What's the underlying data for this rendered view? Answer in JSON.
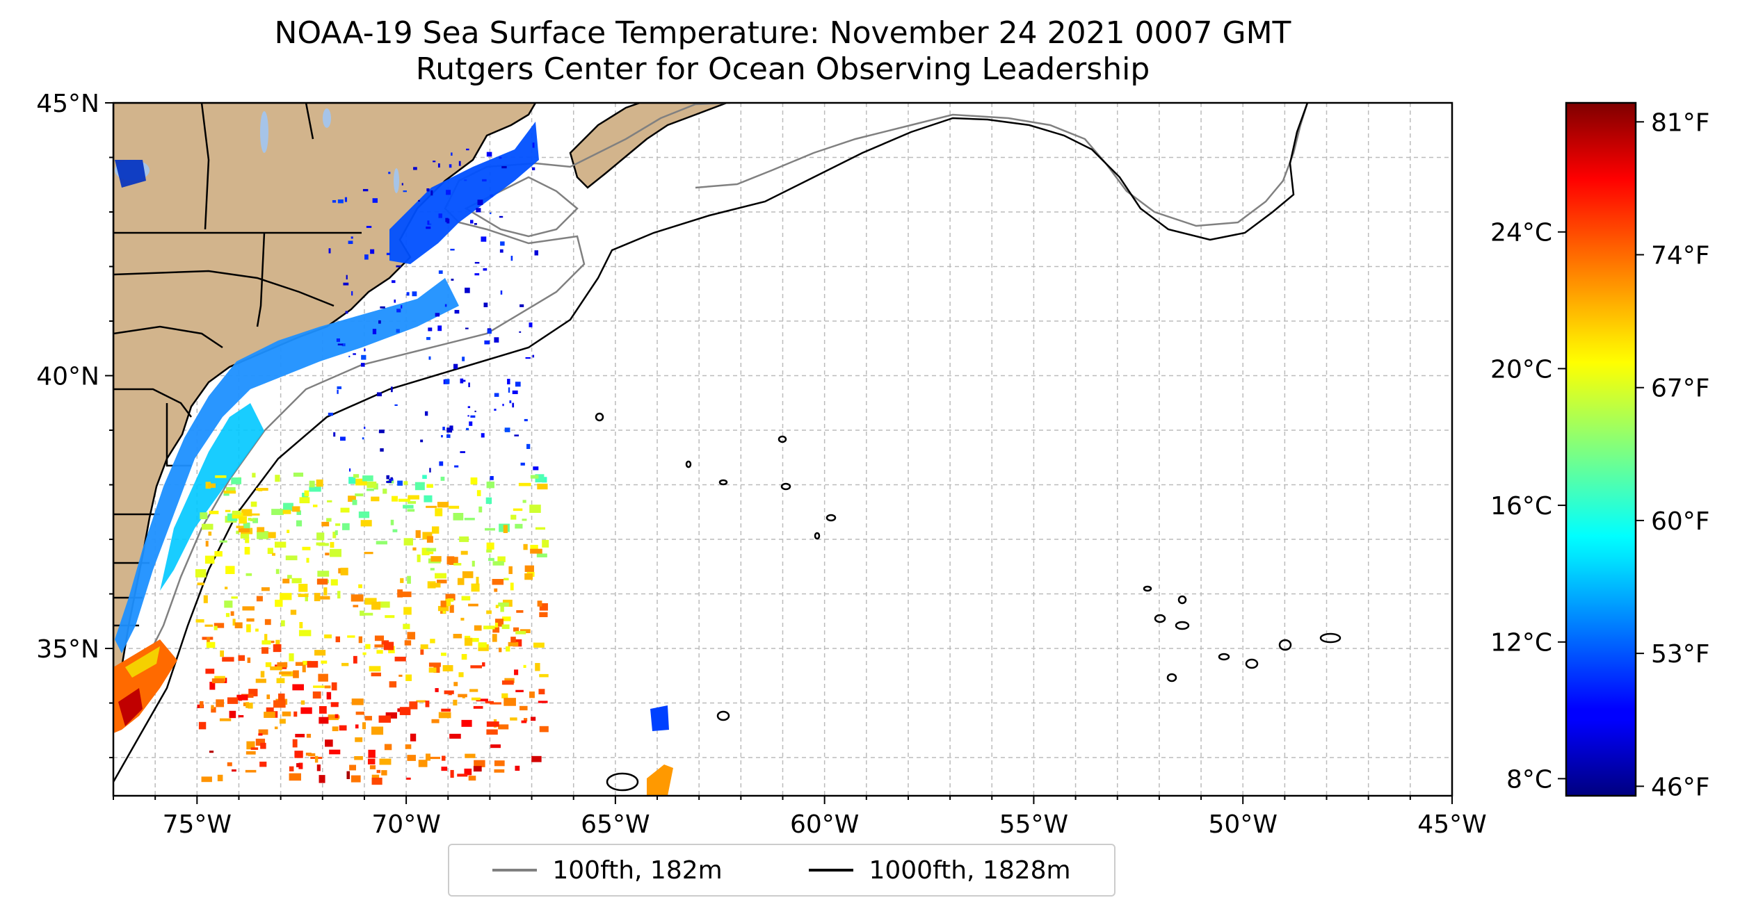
{
  "figure": {
    "title_line1": "NOAA-19 Sea Surface Temperature: November 24 2021 0007 GMT",
    "title_line2": "Rutgers Center for Ocean Observing Leadership"
  },
  "map": {
    "lon_range": [
      -77,
      -45
    ],
    "lat_range": [
      32.3,
      45
    ],
    "x_ticks": [
      "75°W",
      "70°W",
      "65°W",
      "60°W",
      "55°W",
      "50°W",
      "45°W"
    ],
    "x_tick_values": [
      -75,
      -70,
      -65,
      -60,
      -55,
      -50,
      -45
    ],
    "y_ticks": [
      "45°N",
      "40°N",
      "35°N"
    ],
    "y_tick_values": [
      45,
      40,
      35
    ],
    "land_color": "#d2b48c",
    "gridlines": "dashed",
    "gridline_spacing_deg": 1
  },
  "legend": {
    "placement": "bottom-center",
    "items": [
      {
        "label": "100fth, 182m",
        "color": "#808080"
      },
      {
        "label": "1000fth, 1828m",
        "color": "#000000"
      }
    ]
  },
  "colorbar": {
    "colormap": "jet",
    "range_f": [
      45.5,
      82
    ],
    "fahrenheit_ticks": [
      "81°F",
      "74°F",
      "67°F",
      "60°F",
      "53°F",
      "46°F"
    ],
    "fahrenheit_values": [
      81,
      74,
      67,
      60,
      53,
      46
    ],
    "celsius_ticks": [
      "24°C",
      "20°C",
      "16°C",
      "12°C",
      "8°C"
    ],
    "celsius_values": [
      24,
      20,
      16,
      12,
      8
    ]
  }
}
